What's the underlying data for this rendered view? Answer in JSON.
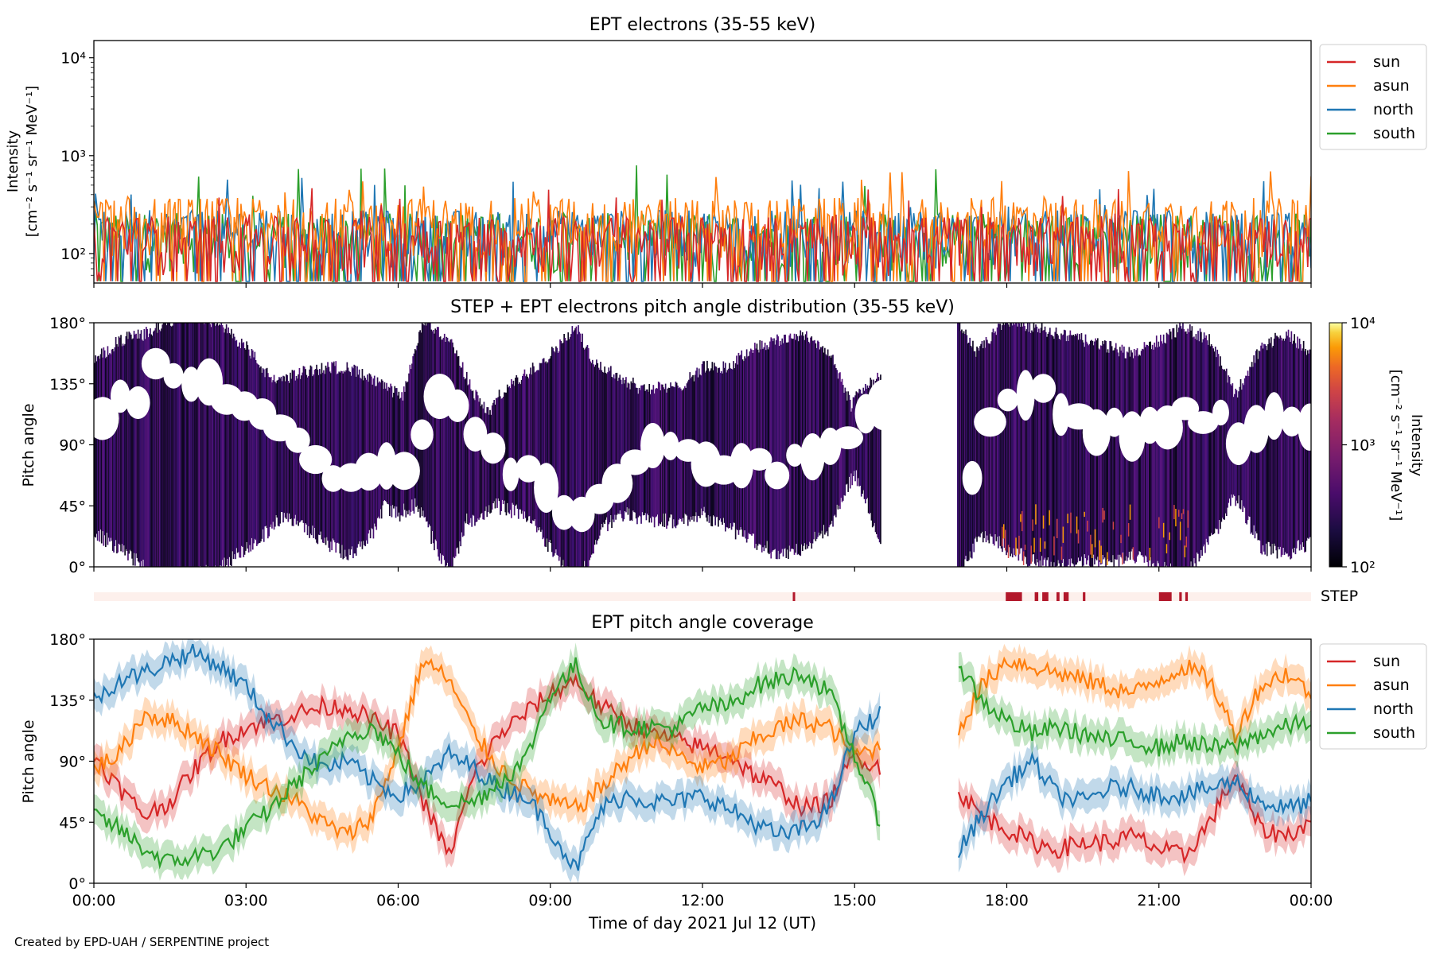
{
  "footer": {
    "credit": "Created by EPD-UAH / SERPENTINE project"
  },
  "colors": {
    "sun": "#d62728",
    "asun": "#ff7f0e",
    "north": "#1f77b4",
    "south": "#2ca02c",
    "step": "#b2182b",
    "step_bg": "#fdf0ec"
  },
  "chart_data": [
    {
      "type": "line",
      "title": "EPT electrons (35-55 keV)",
      "ylabel_lines": [
        "Intensity",
        "[cm⁻² s⁻¹ sr⁻¹ MeV⁻¹]"
      ],
      "yscale": "log",
      "ylim": [
        50,
        15000
      ],
      "y_ticks": [
        100,
        1000,
        10000
      ],
      "y_tick_labels": [
        "10²",
        "10³",
        "10⁴"
      ],
      "legend_position": "upper-right-outside",
      "series": [
        {
          "name": "sun",
          "typical": 130,
          "peak": 480
        },
        {
          "name": "asun",
          "typical": 200,
          "peak": 720
        },
        {
          "name": "north",
          "typical": 150,
          "peak": 640
        },
        {
          "name": "south",
          "typical": 140,
          "peak": 860
        }
      ]
    },
    {
      "type": "heatmap",
      "title": "STEP + EPT electrons pitch angle distribution (35-55 keV)",
      "ylabel": "Pitch angle",
      "ylim": [
        0,
        180
      ],
      "y_tick_labels": [
        "0°",
        "45°",
        "90°",
        "135°",
        "180°"
      ],
      "colorbar": {
        "label_lines": [
          "Intensity",
          "[cm⁻² s⁻¹ sr⁻¹ MeV⁻¹]"
        ],
        "scale": "log",
        "range": [
          100,
          10000
        ],
        "tick_labels": [
          "10²",
          "10³",
          "10⁴"
        ]
      },
      "data_gap_hours": [
        15.6,
        16.5
      ]
    },
    {
      "type": "table",
      "label": "STEP",
      "active_intervals_hours": [
        [
          13.78,
          13.82
        ],
        [
          17.98,
          18.3
        ],
        [
          18.55,
          18.62
        ],
        [
          18.7,
          18.82
        ],
        [
          18.98,
          19.04
        ],
        [
          19.12,
          19.22
        ],
        [
          19.5,
          19.55
        ],
        [
          21.0,
          21.25
        ],
        [
          21.4,
          21.45
        ],
        [
          21.52,
          21.57
        ]
      ]
    },
    {
      "type": "line",
      "title": "EPT pitch angle coverage",
      "xlabel": "Time of day 2021 Jul 12 (UT)",
      "ylabel": "Pitch angle",
      "xlim": [
        "00:00",
        "24:00"
      ],
      "x_tick_labels": [
        "00:00",
        "03:00",
        "06:00",
        "09:00",
        "12:00",
        "15:00",
        "18:00",
        "21:00",
        "00:00"
      ],
      "ylim": [
        0,
        180
      ],
      "y_tick_labels": [
        "0°",
        "45°",
        "90°",
        "135°",
        "180°"
      ],
      "band_halfwidth_deg": 11,
      "data_gap_hours": [
        15.6,
        16.5
      ],
      "legend_position": "upper-right-outside",
      "x_hours": [
        0,
        0.5,
        1,
        1.5,
        2,
        2.5,
        3,
        3.5,
        4,
        4.5,
        5,
        5.5,
        6,
        6.5,
        7,
        7.5,
        8,
        8.5,
        9,
        9.5,
        10,
        10.5,
        11,
        11.5,
        12,
        12.5,
        13,
        13.5,
        14,
        14.5,
        15,
        15.5,
        16.5,
        17,
        17.5,
        18,
        18.5,
        19,
        19.5,
        20,
        20.5,
        21,
        21.5,
        22,
        22.5,
        23,
        23.5,
        24
      ],
      "series": [
        {
          "name": "sun",
          "values": [
            95,
            70,
            50,
            60,
            85,
            105,
            115,
            120,
            125,
            130,
            130,
            120,
            110,
            60,
            20,
            80,
            110,
            125,
            140,
            150,
            130,
            120,
            110,
            105,
            100,
            95,
            80,
            70,
            55,
            60,
            95,
            85,
            null,
            70,
            50,
            40,
            30,
            25,
            30,
            30,
            35,
            25,
            20,
            45,
            80,
            40,
            35,
            45
          ]
        },
        {
          "name": "asun",
          "values": [
            85,
            95,
            125,
            120,
            110,
            95,
            80,
            70,
            60,
            45,
            35,
            50,
            100,
            165,
            150,
            110,
            85,
            70,
            60,
            55,
            70,
            90,
            105,
            95,
            85,
            90,
            105,
            115,
            120,
            115,
            95,
            100,
            null,
            110,
            145,
            165,
            160,
            155,
            150,
            145,
            140,
            150,
            160,
            150,
            110,
            145,
            155,
            140
          ]
        },
        {
          "name": "north",
          "values": [
            135,
            150,
            155,
            165,
            170,
            160,
            145,
            120,
            100,
            85,
            90,
            75,
            65,
            75,
            95,
            85,
            70,
            65,
            40,
            10,
            55,
            65,
            60,
            60,
            65,
            55,
            45,
            35,
            40,
            55,
            110,
            125,
            null,
            20,
            50,
            75,
            90,
            65,
            60,
            70,
            70,
            65,
            65,
            70,
            75,
            60,
            55,
            60
          ]
        },
        {
          "name": "south",
          "values": [
            50,
            40,
            25,
            15,
            20,
            25,
            40,
            55,
            75,
            90,
            110,
            115,
            95,
            70,
            60,
            60,
            75,
            90,
            140,
            160,
            120,
            115,
            115,
            115,
            130,
            130,
            145,
            150,
            155,
            140,
            95,
            45,
            null,
            165,
            135,
            120,
            110,
            115,
            110,
            105,
            105,
            100,
            105,
            100,
            100,
            110,
            115,
            120
          ]
        }
      ]
    }
  ]
}
